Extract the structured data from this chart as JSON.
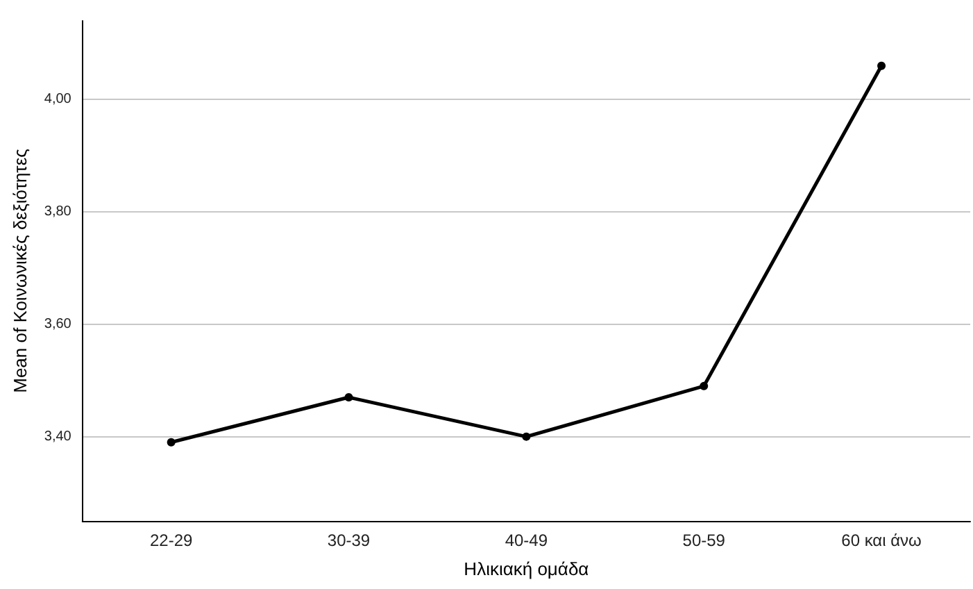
{
  "chart_data": {
    "type": "line",
    "xlabel": "Ηλικιακή ομάδα",
    "ylabel": "Mean of Κοινωνικές δεξιότητες",
    "categories": [
      "22-29",
      "30-39",
      "40-49",
      "50-59",
      "60 και άνω"
    ],
    "series": [
      {
        "color": "#000000",
        "values": [
          3.39,
          3.47,
          3.4,
          3.49,
          4.06
        ]
      }
    ],
    "ylim": [
      3.25,
      4.14
    ],
    "yticks": [
      {
        "value": 3.4,
        "label": "3,40"
      },
      {
        "value": 3.6,
        "label": "3,60"
      },
      {
        "value": 3.8,
        "label": "3,80"
      },
      {
        "value": 4.0,
        "label": "4,00"
      }
    ],
    "grid": "y",
    "marker": "circle",
    "line_style": "solid"
  }
}
